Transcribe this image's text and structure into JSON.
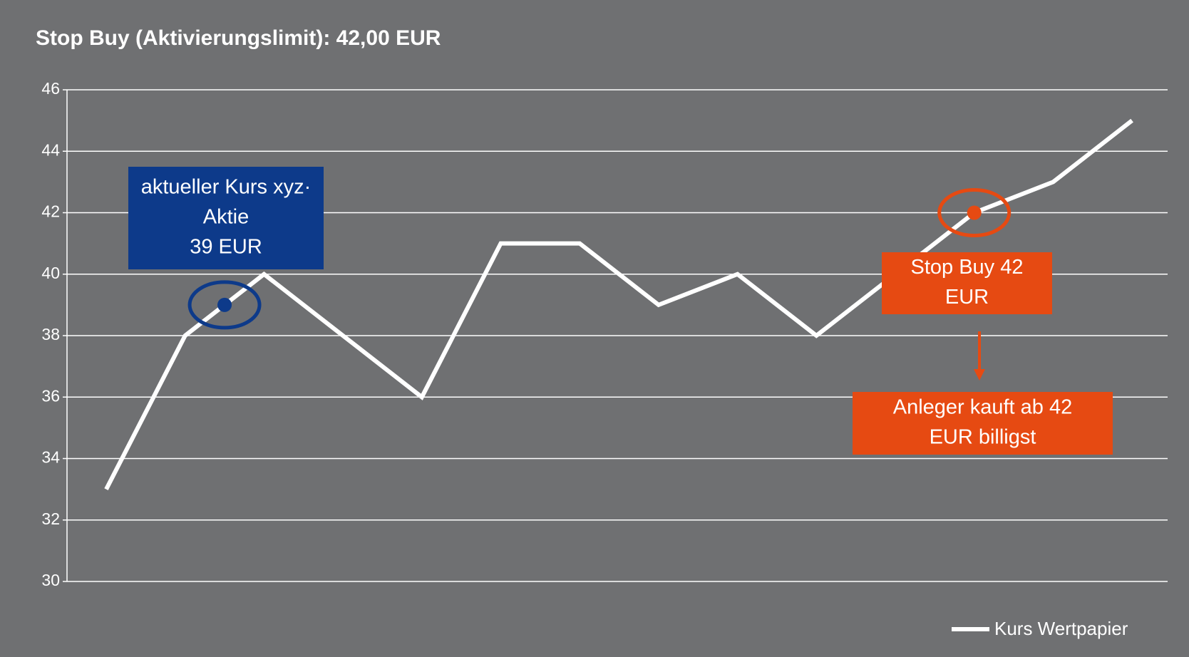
{
  "chart_data": {
    "type": "line",
    "title": "Stop Buy (Aktivierungslimit): 42,00 EUR",
    "categories": [
      null,
      null,
      null,
      null,
      null,
      null,
      null,
      null,
      null,
      null,
      null,
      null,
      null,
      null
    ],
    "series": [
      {
        "name": "Kurs Wertpapier",
        "color": "#ffffff",
        "values": [
          33,
          38,
          40,
          38,
          36,
          41,
          41,
          39,
          40,
          38,
          40,
          42,
          43,
          45
        ]
      }
    ],
    "ylim": [
      30,
      46
    ],
    "yticks": [
      30,
      32,
      34,
      36,
      38,
      40,
      42,
      44,
      46
    ],
    "grid": true,
    "legend": "bottom-right",
    "annotations": [
      {
        "lines": [
          "aktueller Kurs xyz·",
          "Aktie",
          "39 EUR"
        ],
        "x": 1.5,
        "y": 39,
        "color": "#0d3a8a"
      },
      {
        "lines": [
          "Stop Buy 42",
          "EUR"
        ],
        "x": 11,
        "y": 42,
        "color": "#e64a12"
      },
      {
        "lines": [
          "Anleger kauft ab 42",
          "EUR billigst"
        ],
        "color": "#e64a12"
      }
    ]
  }
}
